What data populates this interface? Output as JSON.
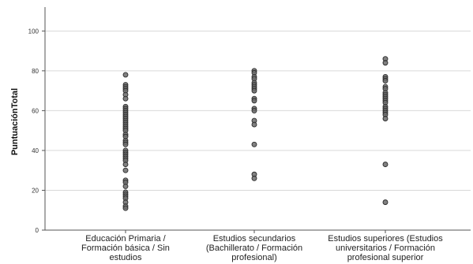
{
  "chart_data": {
    "type": "scatter",
    "title": "",
    "xlabel": "",
    "ylabel": "PuntuaciónTotal",
    "ylim": [
      0,
      112
    ],
    "yticks": [
      0,
      20,
      40,
      60,
      80,
      100
    ],
    "grid": "horizontal",
    "categories": [
      [
        "Educación Primaria /",
        "Formación básica / Sin",
        "estudios"
      ],
      [
        "Estudios secundarios",
        "(Bachillerato / Formación",
        "profesional)"
      ],
      [
        "Estudios superiores (Estudios",
        "universitarios / Formación",
        "profesional superior"
      ]
    ],
    "series": [
      {
        "category_index": 0,
        "values": [
          78,
          73,
          72,
          71,
          70,
          68,
          66,
          62,
          61,
          60,
          59,
          58,
          57,
          56,
          55,
          54,
          53,
          52,
          51,
          50,
          48,
          47,
          45,
          44,
          43,
          40,
          39,
          38,
          37,
          36,
          35,
          33,
          30,
          25,
          24,
          22,
          19,
          18,
          17,
          16,
          14,
          12,
          11
        ]
      },
      {
        "category_index": 1,
        "values": [
          80,
          79,
          77,
          76,
          74,
          73,
          72,
          71,
          70,
          66,
          65,
          61,
          60,
          55,
          53,
          43,
          28,
          26
        ]
      },
      {
        "category_index": 2,
        "values": [
          86,
          84,
          77,
          76,
          75,
          72,
          71,
          69,
          68,
          67,
          66,
          65,
          64,
          62,
          61,
          60,
          59,
          58,
          56,
          33,
          14
        ]
      }
    ],
    "colors": {
      "marker_fill": "#6b6b6b",
      "marker_stroke": "#2b2b2b",
      "grid": "#d9d9d9",
      "axis": "#555555"
    }
  }
}
